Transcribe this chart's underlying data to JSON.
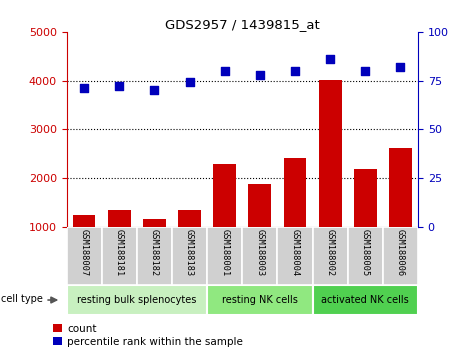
{
  "title": "GDS2957 / 1439815_at",
  "samples": [
    "GSM188007",
    "GSM188181",
    "GSM188182",
    "GSM188183",
    "GSM188001",
    "GSM188003",
    "GSM188004",
    "GSM188002",
    "GSM188005",
    "GSM188006"
  ],
  "counts": [
    1230,
    1350,
    1150,
    1350,
    2280,
    1870,
    2400,
    4020,
    2180,
    2620
  ],
  "percentile_ranks": [
    71,
    72,
    70,
    74,
    80,
    78,
    80,
    86,
    80,
    82
  ],
  "groups": [
    {
      "label": "resting bulk splenocytes",
      "start": 0,
      "end": 4
    },
    {
      "label": "resting NK cells",
      "start": 4,
      "end": 7
    },
    {
      "label": "activated NK cells",
      "start": 7,
      "end": 10
    }
  ],
  "cell_type_label": "cell type",
  "legend_count_label": "count",
  "legend_percentile_label": "percentile rank within the sample",
  "bar_color": "#cc0000",
  "dot_color": "#0000bb",
  "left_axis_color": "#cc0000",
  "right_axis_color": "#0000bb",
  "ylim_left": [
    1000,
    5000
  ],
  "ylim_right": [
    0,
    100
  ],
  "yticks_left": [
    1000,
    2000,
    3000,
    4000,
    5000
  ],
  "yticks_right": [
    0,
    25,
    50,
    75,
    100
  ],
  "grid_lines": [
    2000,
    3000,
    4000
  ],
  "dot_size": 40,
  "bar_width": 0.65,
  "tick_label_bg": "#d0d0d0",
  "group_colors": [
    "#c8f0c0",
    "#90e880",
    "#50d050"
  ]
}
